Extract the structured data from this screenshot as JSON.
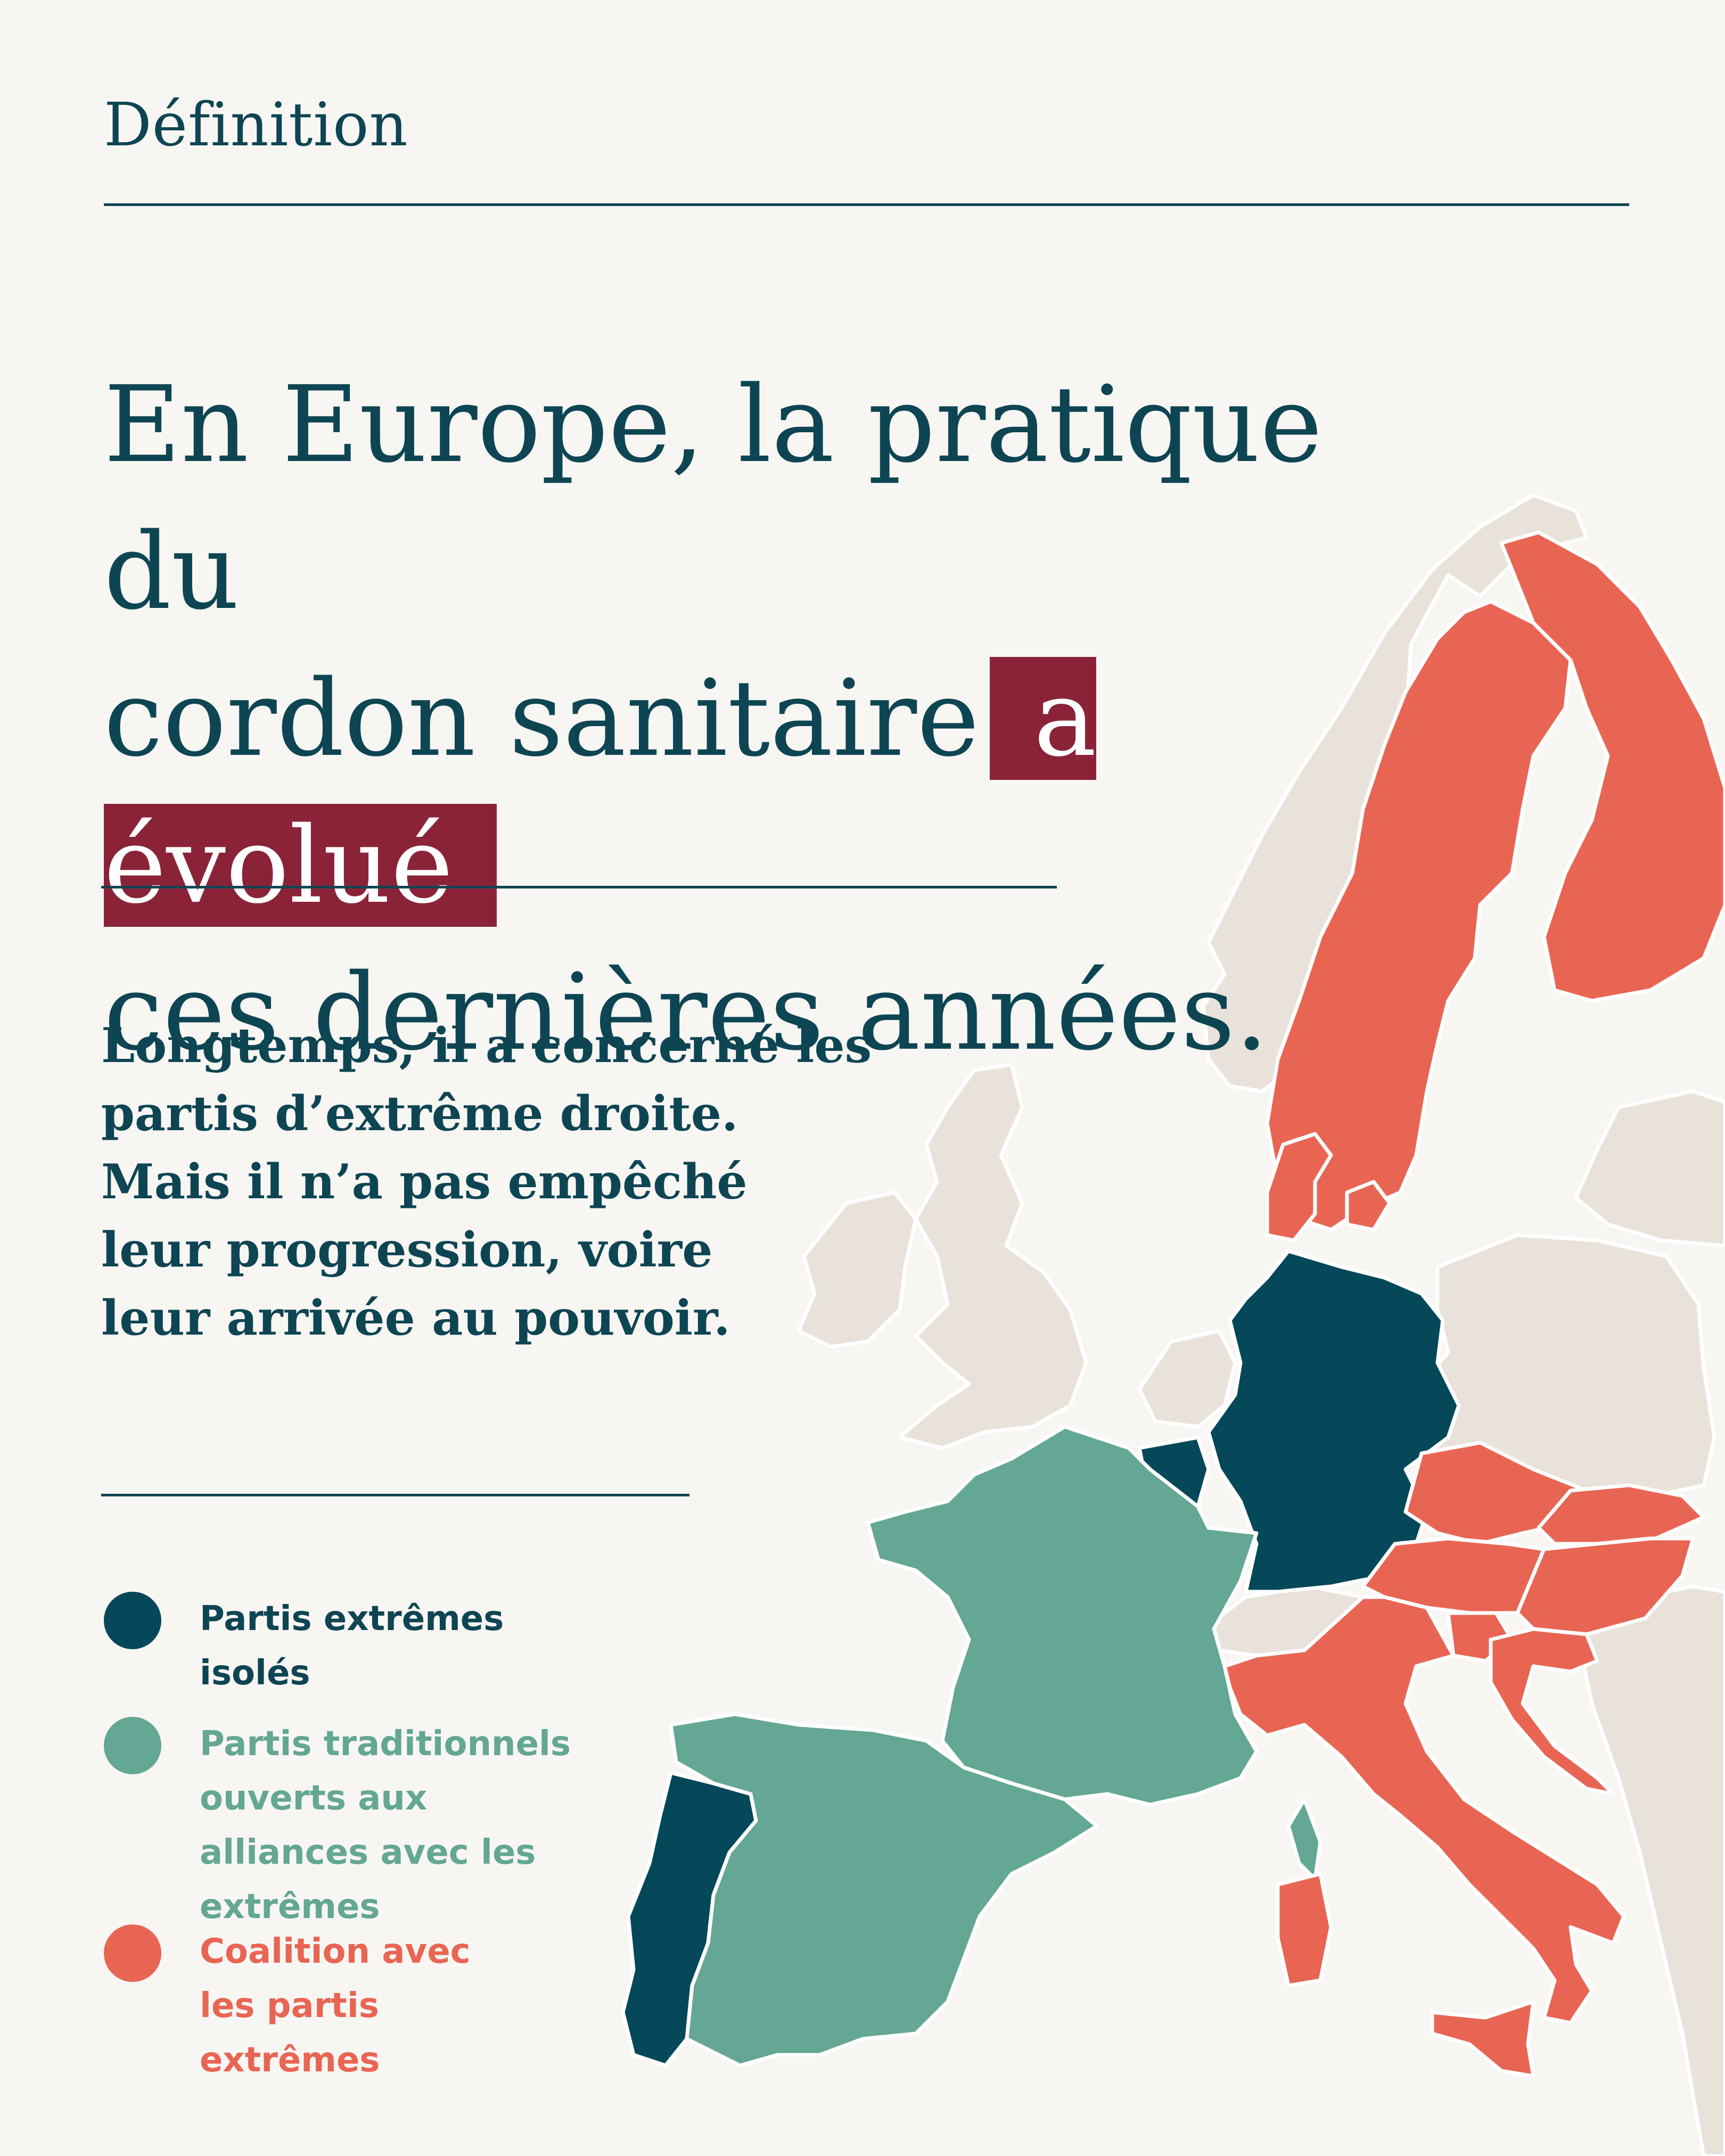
{
  "header": {
    "label": "Définition"
  },
  "title": {
    "line1": "En Europe, la pratique du",
    "line2_start": "cordon sanitaire",
    "highlight": "a évolué",
    "line3": "ces dernières années."
  },
  "body": {
    "line1": "Longtemps, il a concerné les",
    "line2": "partis d’extrême droite.",
    "line3": "Mais il n’a pas empêché",
    "line4": "leur progression, voire",
    "line5": "leur arrivée au pouvoir."
  },
  "legend": [
    {
      "label": "Partis extrêmes isolés",
      "color": "#05485a"
    },
    {
      "label": "Partis traditionnels ouverts aux alliances avec les extrêmes",
      "color": "#63a794"
    },
    {
      "label": "Coalition avec les partis extrêmes",
      "color": "#e96553"
    }
  ],
  "colors": {
    "background": "#f8f6f3",
    "text": "#0e4553",
    "highlight": "#8b2338",
    "neutral_country": "#e8e2da"
  },
  "map": {
    "countries": [
      {
        "name": "norway",
        "category": "neutral"
      },
      {
        "name": "uk",
        "category": "neutral"
      },
      {
        "name": "ireland",
        "category": "neutral"
      },
      {
        "name": "netherlands",
        "category": "neutral"
      },
      {
        "name": "poland",
        "category": "neutral"
      },
      {
        "name": "switzerland",
        "category": "neutral"
      },
      {
        "name": "balkans",
        "category": "neutral"
      },
      {
        "name": "germany",
        "category": "isolated"
      },
      {
        "name": "belgium",
        "category": "isolated"
      },
      {
        "name": "portugal",
        "category": "isolated"
      },
      {
        "name": "france",
        "category": "open"
      },
      {
        "name": "spain",
        "category": "open"
      },
      {
        "name": "corsica",
        "category": "open"
      },
      {
        "name": "sweden",
        "category": "coalition"
      },
      {
        "name": "finland",
        "category": "coalition"
      },
      {
        "name": "denmark",
        "category": "coalition"
      },
      {
        "name": "czechia",
        "category": "coalition"
      },
      {
        "name": "austria",
        "category": "coalition"
      },
      {
        "name": "slovakia",
        "category": "coalition"
      },
      {
        "name": "hungary",
        "category": "coalition"
      },
      {
        "name": "slovenia",
        "category": "coalition"
      },
      {
        "name": "croatia",
        "category": "coalition"
      },
      {
        "name": "italy",
        "category": "coalition"
      },
      {
        "name": "sardinia",
        "category": "coalition"
      },
      {
        "name": "sicily",
        "category": "coalition"
      }
    ]
  }
}
